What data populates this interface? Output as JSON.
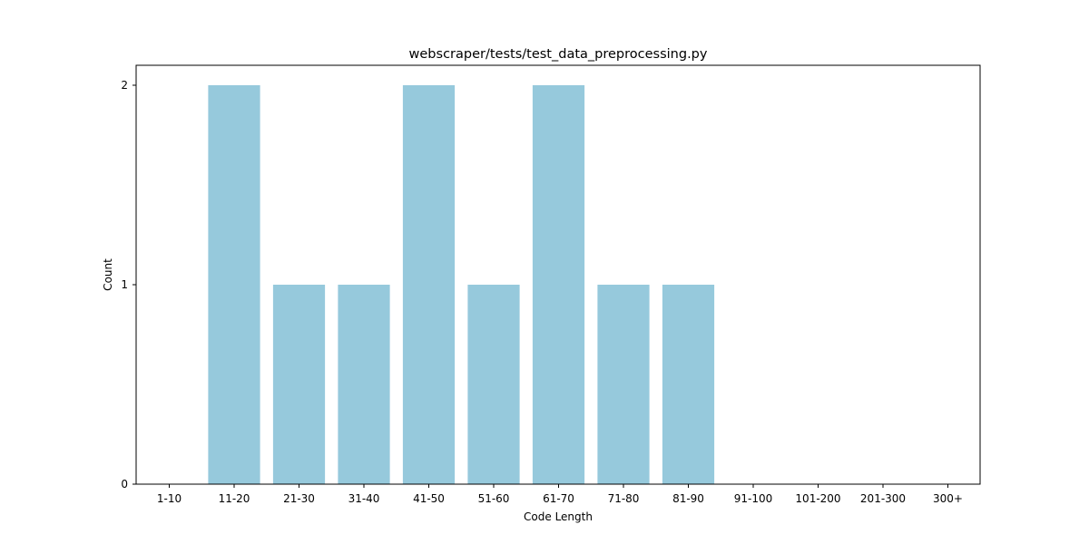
{
  "chart_data": {
    "type": "bar",
    "title": "webscraper/tests/test_data_preprocessing.py",
    "xlabel": "Code Length",
    "ylabel": "Count",
    "categories": [
      "1-10",
      "11-20",
      "21-30",
      "31-40",
      "41-50",
      "51-60",
      "61-70",
      "71-80",
      "81-90",
      "91-100",
      "101-200",
      "201-300",
      "300+"
    ],
    "values": [
      0,
      2,
      1,
      1,
      2,
      1,
      2,
      1,
      1,
      0,
      0,
      0,
      0
    ],
    "ylim": [
      0,
      2.1
    ],
    "yticks": [
      0,
      1,
      2
    ],
    "bar_color": "#96c9dc",
    "grid": false,
    "legend": "none"
  }
}
